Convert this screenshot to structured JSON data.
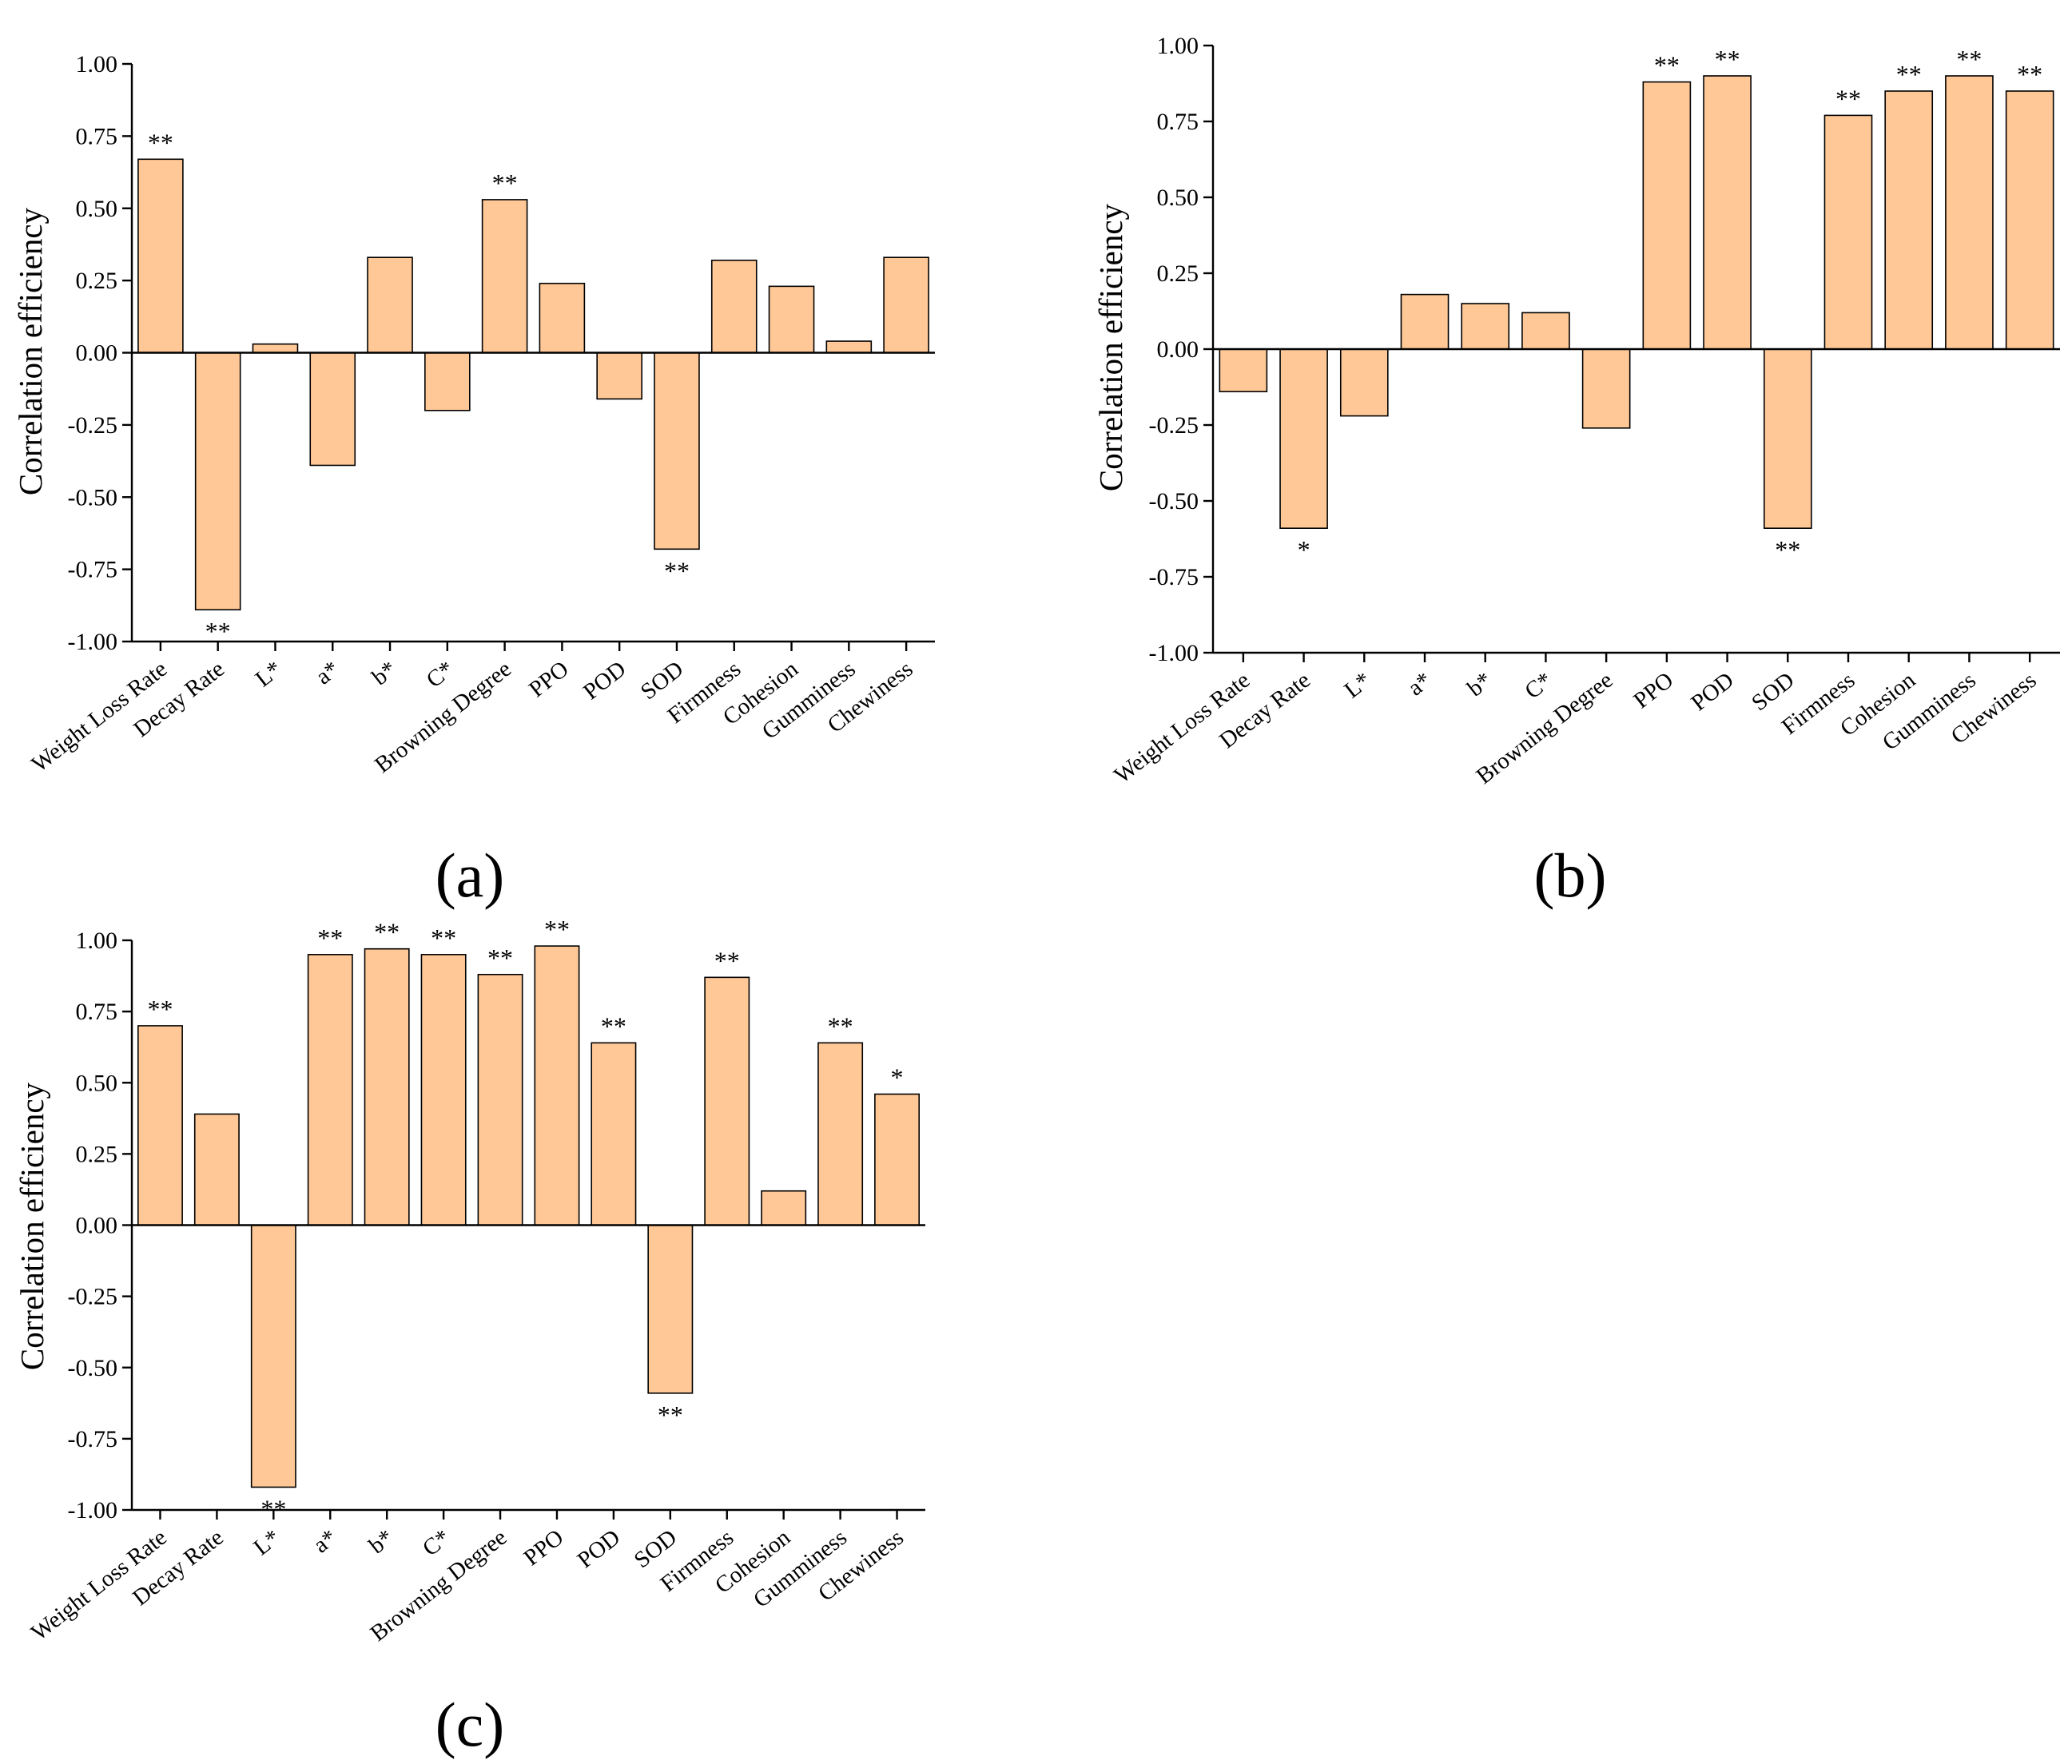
{
  "chart_data": [
    {
      "panel": "(a)",
      "type": "bar",
      "ylabel": "Correlation efficiency",
      "ylim": [
        -1.0,
        1.0
      ],
      "yticks": [
        "1.00",
        "0.75",
        "0.50",
        "0.25",
        "0.00",
        "-0.25",
        "-0.50",
        "-0.75",
        "-1.00"
      ],
      "categories": [
        "Weight Loss Rate",
        "Decay Rate",
        "L*",
        "a*",
        "b*",
        "C*",
        "Browning Degree",
        "PPO",
        "POD",
        "SOD",
        "Firmness",
        "Cohesion",
        "Gumminess",
        "Chewiness"
      ],
      "values": [
        0.67,
        -0.89,
        0.03,
        -0.39,
        0.33,
        -0.2,
        0.53,
        0.24,
        -0.16,
        -0.68,
        0.32,
        0.23,
        0.04,
        0.33
      ],
      "significance": [
        "**",
        "**",
        "",
        "",
        "",
        "",
        "**",
        "",
        "",
        "**",
        "",
        "",
        "",
        ""
      ],
      "bar_color": "#FFC896",
      "edge_color": "#000000"
    },
    {
      "panel": "(b)",
      "type": "bar",
      "ylabel": "Correlation efficiency",
      "ylim": [
        -1.0,
        1.0
      ],
      "yticks": [
        "1.00",
        "0.75",
        "0.50",
        "0.25",
        "0.00",
        "-0.25",
        "-0.50",
        "-0.75",
        "-1.00"
      ],
      "categories": [
        "Weight Loss Rate",
        "Decay Rate",
        "L*",
        "a*",
        "b*",
        "C*",
        "Browning Degree",
        "PPO",
        "POD",
        "SOD",
        "Firmness",
        "Cohesion",
        "Gumminess",
        "Chewiness"
      ],
      "values": [
        -0.14,
        -0.59,
        -0.22,
        0.18,
        0.15,
        0.12,
        -0.26,
        0.88,
        0.9,
        -0.59,
        0.77,
        0.85,
        0.9,
        0.85
      ],
      "significance": [
        "",
        "*",
        "",
        "",
        "",
        "",
        "",
        "**",
        "**",
        "**",
        "**",
        "**",
        "**",
        "**"
      ],
      "bar_color": "#FFC896",
      "edge_color": "#000000"
    },
    {
      "panel": "(c)",
      "type": "bar",
      "ylabel": "Correlation efficiency",
      "ylim": [
        -1.0,
        1.0
      ],
      "yticks": [
        "1.00",
        "0.75",
        "0.50",
        "0.25",
        "0.00",
        "-0.25",
        "-0.50",
        "-0.75",
        "-1.00"
      ],
      "categories": [
        "Weight Loss Rate",
        "Decay Rate",
        "L*",
        "a*",
        "b*",
        "C*",
        "Browning Degree",
        "PPO",
        "POD",
        "SOD",
        "Firmness",
        "Cohesion",
        "Gumminess",
        "Chewiness"
      ],
      "values": [
        0.7,
        0.39,
        -0.92,
        0.95,
        0.97,
        0.95,
        0.88,
        0.98,
        0.64,
        -0.59,
        0.87,
        0.12,
        0.64,
        0.46
      ],
      "significance": [
        "**",
        "",
        "**",
        "**",
        "**",
        "**",
        "**",
        "**",
        "**",
        "**",
        "**",
        "",
        "**",
        "*"
      ],
      "bar_color": "#FFC896",
      "edge_color": "#000000"
    }
  ]
}
